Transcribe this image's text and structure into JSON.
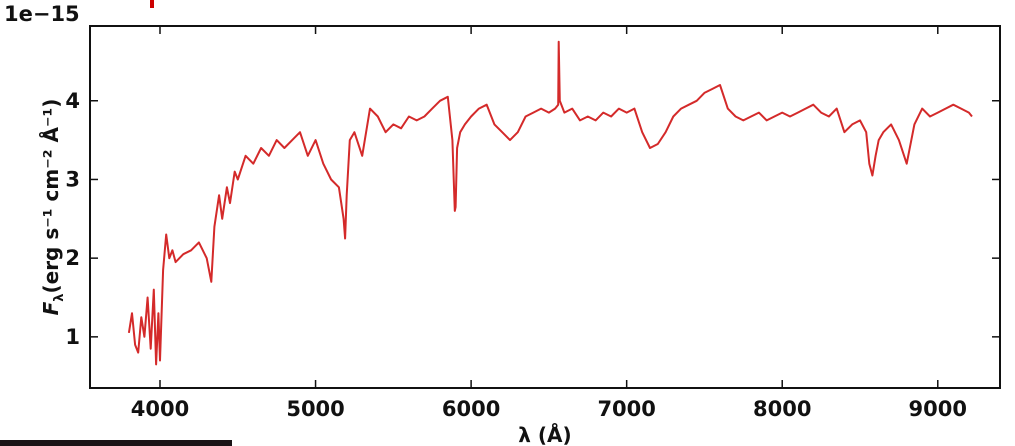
{
  "chart_data": {
    "type": "line",
    "title": "",
    "xlabel": "λ (Å)",
    "ylabel_main": "F",
    "ylabel_sub": "λ",
    "ylabel_units": "(erg s⁻¹ cm⁻² Å⁻¹)",
    "y_offset_label": "1e−15",
    "xlim": [
      3550,
      9400
    ],
    "ylim": [
      0.35,
      4.95
    ],
    "xticks": [
      4000,
      5000,
      6000,
      7000,
      8000,
      9000
    ],
    "yticks": [
      1,
      2,
      3,
      4
    ],
    "grid": false,
    "line_color": "#d42a2a",
    "series": [
      {
        "values_note_free": true,
        "x": [
          3800,
          3820,
          3840,
          3860,
          3880,
          3900,
          3920,
          3940,
          3960,
          3975,
          3990,
          4000,
          4020,
          4040,
          4060,
          4080,
          4100,
          4150,
          4200,
          4250,
          4300,
          4330,
          4350,
          4380,
          4400,
          4430,
          4450,
          4480,
          4500,
          4550,
          4600,
          4650,
          4700,
          4750,
          4800,
          4850,
          4900,
          4950,
          5000,
          5050,
          5100,
          5150,
          5180,
          5190,
          5200,
          5220,
          5250,
          5300,
          5350,
          5400,
          5450,
          5500,
          5550,
          5600,
          5650,
          5700,
          5750,
          5800,
          5850,
          5880,
          5895,
          5900,
          5910,
          5930,
          5960,
          6000,
          6050,
          6100,
          6150,
          6200,
          6250,
          6300,
          6350,
          6400,
          6450,
          6500,
          6540,
          6560,
          6563,
          6570,
          6600,
          6650,
          6700,
          6750,
          6800,
          6850,
          6900,
          6950,
          7000,
          7050,
          7100,
          7150,
          7200,
          7250,
          7300,
          7350,
          7400,
          7450,
          7500,
          7550,
          7600,
          7650,
          7700,
          7750,
          7800,
          7850,
          7900,
          7950,
          8000,
          8050,
          8100,
          8150,
          8200,
          8250,
          8300,
          8350,
          8400,
          8450,
          8500,
          8540,
          8560,
          8580,
          8600,
          8620,
          8650,
          8700,
          8750,
          8800,
          8850,
          8900,
          8950,
          9000,
          9050,
          9100,
          9150,
          9200,
          9220
        ],
        "y": [
          1.05,
          1.3,
          0.9,
          0.8,
          1.25,
          1.0,
          1.5,
          0.85,
          1.6,
          0.65,
          1.3,
          0.7,
          1.85,
          2.3,
          2.0,
          2.1,
          1.95,
          2.05,
          2.1,
          2.2,
          2.0,
          1.7,
          2.4,
          2.8,
          2.5,
          2.9,
          2.7,
          3.1,
          3.0,
          3.3,
          3.2,
          3.4,
          3.3,
          3.5,
          3.4,
          3.5,
          3.6,
          3.3,
          3.5,
          3.2,
          3.0,
          2.9,
          2.5,
          2.25,
          2.8,
          3.5,
          3.6,
          3.3,
          3.9,
          3.8,
          3.6,
          3.7,
          3.65,
          3.8,
          3.75,
          3.8,
          3.9,
          4.0,
          4.05,
          3.5,
          2.6,
          2.65,
          3.4,
          3.6,
          3.7,
          3.8,
          3.9,
          3.95,
          3.7,
          3.6,
          3.5,
          3.6,
          3.8,
          3.85,
          3.9,
          3.85,
          3.9,
          3.95,
          4.75,
          4.0,
          3.85,
          3.9,
          3.75,
          3.8,
          3.75,
          3.85,
          3.8,
          3.9,
          3.85,
          3.9,
          3.6,
          3.4,
          3.45,
          3.6,
          3.8,
          3.9,
          3.95,
          4.0,
          4.1,
          4.15,
          4.2,
          3.9,
          3.8,
          3.75,
          3.8,
          3.85,
          3.75,
          3.8,
          3.85,
          3.8,
          3.85,
          3.9,
          3.95,
          3.85,
          3.8,
          3.9,
          3.6,
          3.7,
          3.75,
          3.6,
          3.2,
          3.05,
          3.3,
          3.5,
          3.6,
          3.7,
          3.5,
          3.2,
          3.7,
          3.9,
          3.8,
          3.85,
          3.9,
          3.95,
          3.9,
          3.85,
          3.8
        ]
      }
    ]
  }
}
